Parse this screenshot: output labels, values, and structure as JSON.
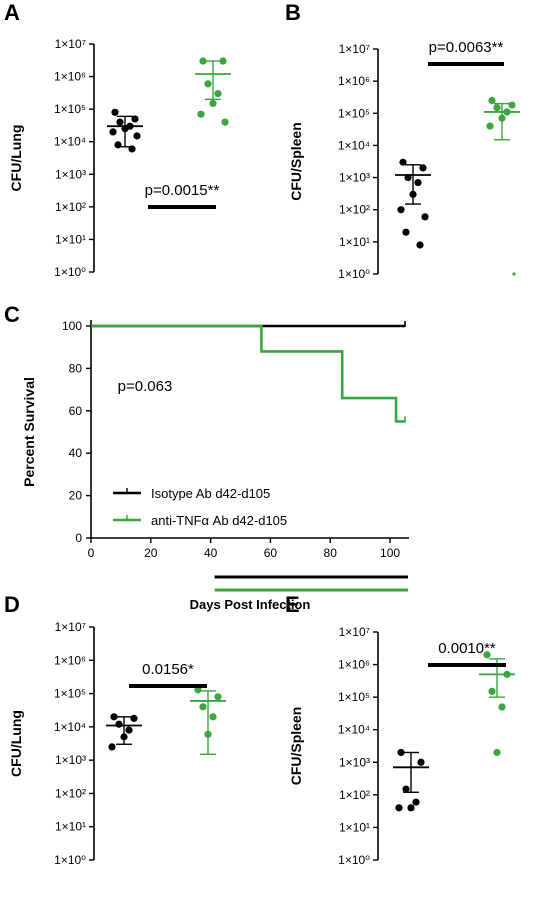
{
  "colors": {
    "isotype": "#000000",
    "antiTNF": "#3aa63f"
  },
  "chart_data": [
    {
      "panel": "A",
      "type": "scatter",
      "ylabel": "CFU/Lung",
      "yscale": "log",
      "ylim": [
        1,
        10000000
      ],
      "ytick_labels": [
        "1×10⁰",
        "1×10¹",
        "1×10²",
        "1×10³",
        "1×10⁴",
        "1×10⁵",
        "1×10⁶",
        "1×10⁷"
      ],
      "annotation": "p=0.0015**",
      "series": [
        {
          "color_key": "isotype",
          "values": [
            80000,
            50000,
            40000,
            30000,
            25000,
            20000,
            15000,
            8000,
            6000
          ],
          "center": 30000,
          "err_low": 7000,
          "err_high": 60000
        },
        {
          "color_key": "antiTNF",
          "values": [
            3000000,
            3000000,
            600000,
            300000,
            150000,
            70000,
            40000
          ],
          "center": 1200000,
          "err_low": 200000,
          "err_high": 3000000
        }
      ]
    },
    {
      "panel": "B",
      "type": "scatter",
      "ylabel": "CFU/Spleen",
      "yscale": "log",
      "ylim": [
        1,
        10000000
      ],
      "ytick_labels": [
        "1×10⁰",
        "1×10¹",
        "1×10²",
        "1×10³",
        "1×10⁴",
        "1×10⁵",
        "1×10⁶",
        "1×10⁷"
      ],
      "annotation": "p=0.0063**",
      "series": [
        {
          "color_key": "isotype",
          "values": [
            3000,
            2000,
            1000,
            700,
            300,
            100,
            60,
            20,
            8
          ],
          "center": 1200,
          "err_low": 150,
          "err_high": 2500
        },
        {
          "color_key": "antiTNF",
          "values": [
            250000,
            180000,
            150000,
            110000,
            70000,
            40000,
            1
          ],
          "center": 110000,
          "err_low": 15000,
          "err_high": 200000
        }
      ]
    },
    {
      "panel": "C",
      "type": "line",
      "ylabel": "Percent Survival",
      "xlabel": "Days Post Infection",
      "xlim": [
        0,
        105
      ],
      "ylim": [
        0,
        100
      ],
      "xticks": [
        0,
        20,
        40,
        60,
        80,
        100
      ],
      "yticks": [
        0,
        20,
        40,
        60,
        80,
        100
      ],
      "annotation": "p=0.063",
      "series": [
        {
          "name": "Isotype Ab d42-d105",
          "color_key": "isotype",
          "x": [
            0,
            105
          ],
          "y": [
            100,
            100
          ]
        },
        {
          "name": "anti-TNFα Ab d42-d105",
          "color_key": "antiTNF",
          "x": [
            0,
            57,
            57,
            84,
            84,
            102,
            102,
            105
          ],
          "y": [
            100,
            100,
            88,
            88,
            66,
            66,
            55,
            55
          ]
        }
      ],
      "treatment_bars": [
        {
          "color_key": "isotype",
          "x": [
            42,
            105
          ]
        },
        {
          "color_key": "antiTNF",
          "x": [
            42,
            105
          ]
        }
      ]
    },
    {
      "panel": "D",
      "type": "scatter",
      "ylabel": "CFU/Lung",
      "yscale": "log",
      "ylim": [
        1,
        10000000
      ],
      "ytick_labels": [
        "1×10⁰",
        "1×10¹",
        "1×10²",
        "1×10³",
        "1×10⁴",
        "1×10⁵",
        "1×10⁶",
        "1×10⁷"
      ],
      "annotation": "0.0156*",
      "series": [
        {
          "color_key": "isotype",
          "values": [
            20000,
            18000,
            12000,
            8000,
            5000,
            2500
          ],
          "center": 11000,
          "err_low": 3000,
          "err_high": 20000
        },
        {
          "color_key": "antiTNF",
          "values": [
            130000,
            80000,
            40000,
            20000,
            6000
          ],
          "center": 60000,
          "err_low": 1500,
          "err_high": 120000
        }
      ]
    },
    {
      "panel": "E",
      "type": "scatter",
      "ylabel": "CFU/Spleen",
      "yscale": "log",
      "ylim": [
        1,
        10000000
      ],
      "ytick_labels": [
        "1×10⁰",
        "1×10¹",
        "1×10²",
        "1×10³",
        "1×10⁴",
        "1×10⁵",
        "1×10⁶",
        "1×10⁷"
      ],
      "annotation": "0.0010**",
      "series": [
        {
          "color_key": "isotype",
          "values": [
            2000,
            1000,
            150,
            60,
            40,
            40
          ],
          "center": 700,
          "err_low": 120,
          "err_high": 2000
        },
        {
          "color_key": "antiTNF",
          "values": [
            2000000,
            500000,
            150000,
            50000,
            2000
          ],
          "center": 500000,
          "err_low": 100000,
          "err_high": 1500000
        }
      ]
    }
  ]
}
